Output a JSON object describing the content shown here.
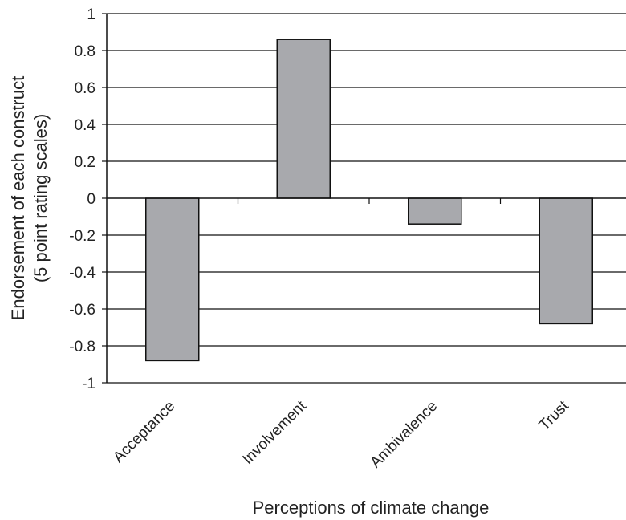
{
  "chart_data": {
    "type": "bar",
    "title": "",
    "xlabel": "Perceptions of climate change",
    "ylabel_lines": [
      "Endorsement of each construct",
      "(5 point rating scales)"
    ],
    "categories": [
      "Acceptance",
      "Involvement",
      "Ambivalence",
      "Trust"
    ],
    "values": [
      -0.88,
      0.86,
      -0.14,
      -0.68
    ],
    "ylim": [
      -1,
      1
    ],
    "yticks": [
      1,
      0.8,
      0.6,
      0.4,
      0.2,
      0,
      -0.2,
      -0.4,
      -0.6,
      -0.8,
      -1
    ],
    "ytick_labels": [
      "1",
      "0.8",
      "0.6",
      "0.4",
      "0.2",
      "0",
      "-0.2",
      "-0.4",
      "-0.6",
      "-0.8",
      "-1"
    ],
    "grid": true,
    "legend": "none",
    "colors": {
      "bar": "#a8a9ad",
      "bar_edge": "#111111",
      "grid": "#111111",
      "text": "#222222"
    }
  }
}
